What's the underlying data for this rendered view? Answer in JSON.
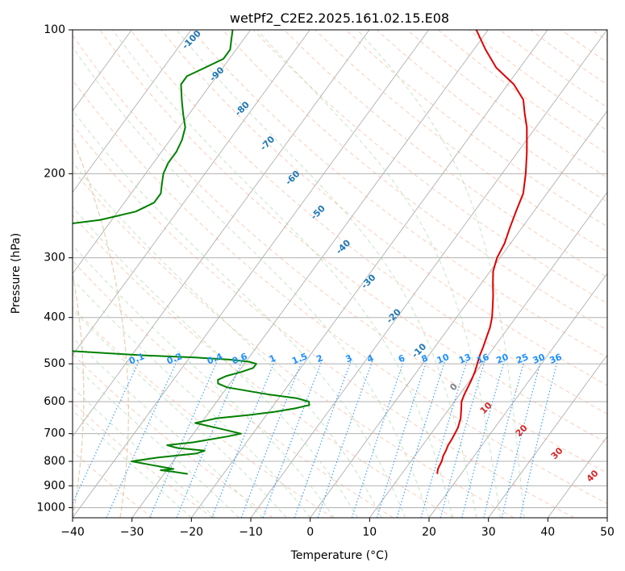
{
  "chart_data": {
    "type": "line",
    "chart_kind": "skew-T log-P",
    "title": "wetPf2_C2E2.2025.161.02.15.E08",
    "xlabel": "Temperature (°C)",
    "ylabel": "Pressure (hPa)",
    "xlim": [
      -40,
      50
    ],
    "ylim": [
      1050,
      100
    ],
    "y_scale": "log",
    "grid": true,
    "x_ticks": [
      -40,
      -30,
      -20,
      -10,
      0,
      10,
      20,
      30,
      40,
      50
    ],
    "y_ticks": [
      100,
      200,
      300,
      400,
      500,
      600,
      700,
      800,
      900,
      1000
    ],
    "series": [
      {
        "color": "#e00000",
        "pressure_hpa": [
          850,
          830,
          800,
          780,
          760,
          740,
          720,
          700,
          680,
          650,
          620,
          600,
          580,
          560,
          540,
          520,
          500,
          480,
          460,
          440,
          420,
          400,
          380,
          360,
          340,
          320,
          300,
          280,
          260,
          240,
          220,
          200,
          180,
          160,
          150,
          140,
          130,
          120,
          110,
          100
        ],
        "temperature_c": [
          16.0,
          15.5,
          15.2,
          14.8,
          14.6,
          14.3,
          14.2,
          14.0,
          13.8,
          13.1,
          12.0,
          11.2,
          10.8,
          10.5,
          10.2,
          9.8,
          9.2,
          8.6,
          8.1,
          7.5,
          6.9,
          6.0,
          4.8,
          3.5,
          2.0,
          0.5,
          -0.5,
          -1.0,
          -2.0,
          -3.0,
          -4.0,
          -6.0,
          -8.5,
          -11.5,
          -13.5,
          -15.5,
          -19.0,
          -24.0,
          -28.0,
          -32.0
        ]
      },
      {
        "color": "#008000",
        "pressure_hpa": [
          850,
          840,
          835,
          830,
          815,
          800,
          785,
          770,
          760,
          750,
          740,
          730,
          710,
          700,
          680,
          665,
          650,
          640,
          630,
          620,
          610,
          600,
          590,
          580,
          570,
          560,
          550,
          540,
          530,
          520,
          510,
          500,
          495,
          490,
          485,
          480,
          470,
          460,
          450,
          420,
          380,
          340,
          300,
          280,
          270,
          260,
          250,
          240,
          230,
          220,
          210,
          200,
          190,
          180,
          170,
          160,
          150,
          140,
          130,
          125,
          120,
          115,
          110,
          105,
          100
        ],
        "dewpoint_c": [
          -26.0,
          -29.0,
          -31.0,
          -29.0,
          -33.0,
          -37.0,
          -33.0,
          -27.0,
          -26.0,
          -31.0,
          -33.0,
          -29.0,
          -24.0,
          -22.0,
          -27.0,
          -31.0,
          -28.0,
          -23.0,
          -19.0,
          -16.0,
          -14.0,
          -14.5,
          -17.0,
          -22.0,
          -26.0,
          -30.0,
          -32.0,
          -32.5,
          -31.5,
          -29.5,
          -28.0,
          -28.0,
          -29.5,
          -33.0,
          -39.0,
          -48.0,
          -61.0,
          -69.0,
          -75.0,
          -85.0,
          -92.0,
          -97.0,
          -102.0,
          -105.0,
          -95.0,
          -82.0,
          -72.0,
          -67.0,
          -65.0,
          -65.0,
          -66.0,
          -67.0,
          -67.5,
          -67.5,
          -68.0,
          -69.0,
          -71.0,
          -73.0,
          -75.0,
          -75.0,
          -73.0,
          -71.0,
          -71.0,
          -72.0,
          -73.0
        ]
      }
    ],
    "dry_adiabat_labels": [
      "-100",
      "-90",
      "-80",
      "-70",
      "-60",
      "-50",
      "-40",
      "-30",
      "-20",
      "-10",
      "0",
      "10",
      "20",
      "30",
      "40"
    ],
    "mixing_ratio_labels": [
      "0.1",
      "0.2",
      "0.4",
      "0.6",
      "1",
      "1.5",
      "2",
      "3",
      "4",
      "6",
      "8",
      "10",
      "13",
      "16",
      "20",
      "25",
      "30",
      "36"
    ],
    "colors": {
      "temperature_line": "#e00000",
      "dewpoint_line": "#008000",
      "dry_adiabat_label": "#1f77b4",
      "moist_adiabat_label": "#d62728",
      "mixing_ratio_label": "#1e90ff",
      "zero_label": "#808080"
    }
  }
}
